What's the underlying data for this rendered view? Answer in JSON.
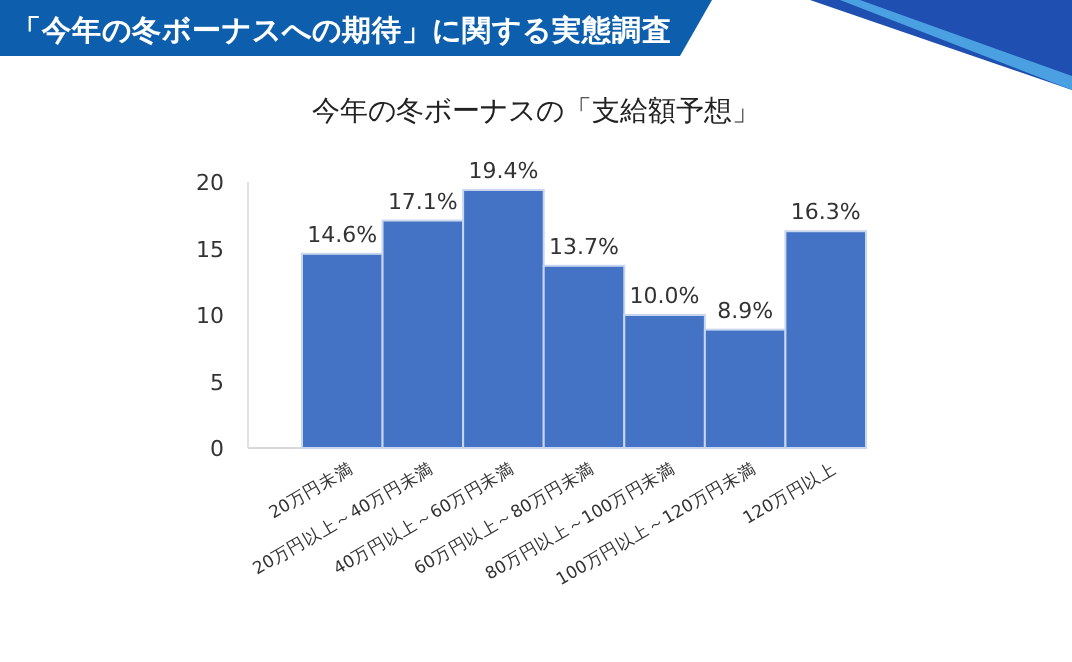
{
  "chart_data": {
    "type": "bar",
    "title": "「今年の冬ボーナスへの期待」に関する実態調査",
    "subtitle": "今年の冬ボーナスの「支給額予想」",
    "categories": [
      "20万円未満",
      "20万円以上～40万円未満",
      "40万円以上～60万円未満",
      "60万円以上～80万円未満",
      "80万円以上～100万円未満",
      "100万円以上～120万円未満",
      "120万円以上"
    ],
    "values": [
      14.6,
      17.1,
      19.4,
      13.7,
      10.0,
      8.9,
      16.3
    ],
    "value_labels": [
      "14.6%",
      "17.1%",
      "19.4%",
      "13.7%",
      "10.0%",
      "8.9%",
      "16.3%"
    ],
    "color": "#4472c4",
    "ylim": [
      0,
      20
    ],
    "yticks": [
      0,
      5,
      10,
      15,
      20
    ],
    "grid": false
  }
}
